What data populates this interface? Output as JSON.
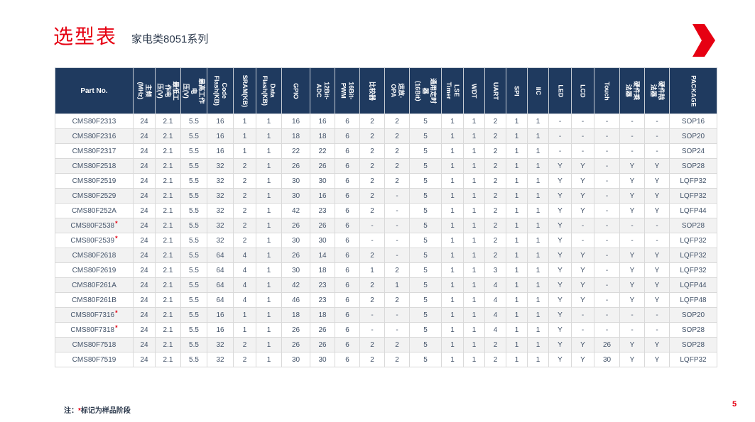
{
  "header": {
    "title": "选型表",
    "subtitle": "家电类8051系列"
  },
  "icons": {
    "top_right": "red-chevron-right-icon"
  },
  "colors": {
    "accent_red": "#e60012",
    "header_bg": "#1f3a5f",
    "row_alt_bg": "#f2f2f2",
    "border": "#d9d9d9",
    "text": "#44546a"
  },
  "table": {
    "columns": [
      "Part No.",
      "主频(MHz)",
      "最低工作电\n压(V)",
      "最高工作电\n压(V)",
      "Code\nFlash(KB)",
      "SRAM(KB)",
      "Data\nFlash(KB)",
      "GPIO",
      "12Bit-ADC",
      "16Bit-\nPWM",
      "比较器",
      "运放-OPA",
      "通用定时器\n（16Bit）",
      "LSE\nTimer",
      "WDT",
      "UART",
      "SPI",
      "IIC",
      "LED",
      "LCD",
      "Touch",
      "硬件乘法器",
      "硬件除法器",
      "PACKAGE"
    ],
    "rows": [
      {
        "part": "CMS80F2313",
        "sample": false,
        "values": [
          "24",
          "2.1",
          "5.5",
          "16",
          "1",
          "1",
          "16",
          "16",
          "6",
          "2",
          "2",
          "5",
          "1",
          "1",
          "2",
          "1",
          "1",
          "-",
          "-",
          "-",
          "-",
          "-",
          "SOP16"
        ]
      },
      {
        "part": "CMS80F2316",
        "sample": false,
        "values": [
          "24",
          "2.1",
          "5.5",
          "16",
          "1",
          "1",
          "18",
          "18",
          "6",
          "2",
          "2",
          "5",
          "1",
          "1",
          "2",
          "1",
          "1",
          "-",
          "-",
          "-",
          "-",
          "-",
          "SOP20"
        ]
      },
      {
        "part": "CMS80F2317",
        "sample": false,
        "values": [
          "24",
          "2.1",
          "5.5",
          "16",
          "1",
          "1",
          "22",
          "22",
          "6",
          "2",
          "2",
          "5",
          "1",
          "1",
          "2",
          "1",
          "1",
          "-",
          "-",
          "-",
          "-",
          "-",
          "SOP24"
        ]
      },
      {
        "part": "CMS80F2518",
        "sample": false,
        "values": [
          "24",
          "2.1",
          "5.5",
          "32",
          "2",
          "1",
          "26",
          "26",
          "6",
          "2",
          "2",
          "5",
          "1",
          "1",
          "2",
          "1",
          "1",
          "Y",
          "Y",
          "-",
          "Y",
          "Y",
          "SOP28"
        ]
      },
      {
        "part": "CMS80F2519",
        "sample": false,
        "values": [
          "24",
          "2.1",
          "5.5",
          "32",
          "2",
          "1",
          "30",
          "30",
          "6",
          "2",
          "2",
          "5",
          "1",
          "1",
          "2",
          "1",
          "1",
          "Y",
          "Y",
          "-",
          "Y",
          "Y",
          "LQFP32"
        ]
      },
      {
        "part": "CMS80F2529",
        "sample": false,
        "values": [
          "24",
          "2.1",
          "5.5",
          "32",
          "2",
          "1",
          "30",
          "16",
          "6",
          "2",
          "-",
          "5",
          "1",
          "1",
          "2",
          "1",
          "1",
          "Y",
          "Y",
          "-",
          "Y",
          "Y",
          "LQFP32"
        ]
      },
      {
        "part": "CMS80F252A",
        "sample": false,
        "values": [
          "24",
          "2.1",
          "5.5",
          "32",
          "2",
          "1",
          "42",
          "23",
          "6",
          "2",
          "-",
          "5",
          "1",
          "1",
          "2",
          "1",
          "1",
          "Y",
          "Y",
          "-",
          "Y",
          "Y",
          "LQFP44"
        ]
      },
      {
        "part": "CMS80F2538",
        "sample": true,
        "values": [
          "24",
          "2.1",
          "5.5",
          "32",
          "2",
          "1",
          "26",
          "26",
          "6",
          "-",
          "-",
          "5",
          "1",
          "1",
          "2",
          "1",
          "1",
          "Y",
          "-",
          "-",
          "-",
          "-",
          "SOP28"
        ]
      },
      {
        "part": "CMS80F2539",
        "sample": true,
        "values": [
          "24",
          "2.1",
          "5.5",
          "32",
          "2",
          "1",
          "30",
          "30",
          "6",
          "-",
          "-",
          "5",
          "1",
          "1",
          "2",
          "1",
          "1",
          "Y",
          "-",
          "-",
          "-",
          "-",
          "LQFP32"
        ]
      },
      {
        "part": "CMS80F2618",
        "sample": false,
        "values": [
          "24",
          "2.1",
          "5.5",
          "64",
          "4",
          "1",
          "26",
          "14",
          "6",
          "2",
          "-",
          "5",
          "1",
          "1",
          "2",
          "1",
          "1",
          "Y",
          "Y",
          "-",
          "Y",
          "Y",
          "LQFP32"
        ]
      },
      {
        "part": "CMS80F2619",
        "sample": false,
        "values": [
          "24",
          "2.1",
          "5.5",
          "64",
          "4",
          "1",
          "30",
          "18",
          "6",
          "1",
          "2",
          "5",
          "1",
          "1",
          "3",
          "1",
          "1",
          "Y",
          "Y",
          "-",
          "Y",
          "Y",
          "LQFP32"
        ]
      },
      {
        "part": "CMS80F261A",
        "sample": false,
        "values": [
          "24",
          "2.1",
          "5.5",
          "64",
          "4",
          "1",
          "42",
          "23",
          "6",
          "2",
          "1",
          "5",
          "1",
          "1",
          "4",
          "1",
          "1",
          "Y",
          "Y",
          "-",
          "Y",
          "Y",
          "LQFP44"
        ]
      },
      {
        "part": "CMS80F261B",
        "sample": false,
        "values": [
          "24",
          "2.1",
          "5.5",
          "64",
          "4",
          "1",
          "46",
          "23",
          "6",
          "2",
          "2",
          "5",
          "1",
          "1",
          "4",
          "1",
          "1",
          "Y",
          "Y",
          "-",
          "Y",
          "Y",
          "LQFP48"
        ]
      },
      {
        "part": "CMS80F7316",
        "sample": true,
        "values": [
          "24",
          "2.1",
          "5.5",
          "16",
          "1",
          "1",
          "18",
          "18",
          "6",
          "-",
          "-",
          "5",
          "1",
          "1",
          "4",
          "1",
          "1",
          "Y",
          "-",
          "-",
          "-",
          "-",
          "SOP20"
        ]
      },
      {
        "part": "CMS80F7318",
        "sample": true,
        "values": [
          "24",
          "2.1",
          "5.5",
          "16",
          "1",
          "1",
          "26",
          "26",
          "6",
          "-",
          "-",
          "5",
          "1",
          "1",
          "4",
          "1",
          "1",
          "Y",
          "-",
          "-",
          "-",
          "-",
          "SOP28"
        ]
      },
      {
        "part": "CMS80F7518",
        "sample": false,
        "values": [
          "24",
          "2.1",
          "5.5",
          "32",
          "2",
          "1",
          "26",
          "26",
          "6",
          "2",
          "2",
          "5",
          "1",
          "1",
          "2",
          "1",
          "1",
          "Y",
          "Y",
          "26",
          "Y",
          "Y",
          "SOP28"
        ]
      },
      {
        "part": "CMS80F7519",
        "sample": false,
        "values": [
          "24",
          "2.1",
          "5.5",
          "32",
          "2",
          "1",
          "30",
          "30",
          "6",
          "2",
          "2",
          "5",
          "1",
          "1",
          "2",
          "1",
          "1",
          "Y",
          "Y",
          "30",
          "Y",
          "Y",
          "LQFP32"
        ]
      }
    ]
  },
  "footer": {
    "note_prefix": "注：",
    "note_star": "*",
    "note_text": "标记为样品阶段",
    "page_number": "5"
  }
}
